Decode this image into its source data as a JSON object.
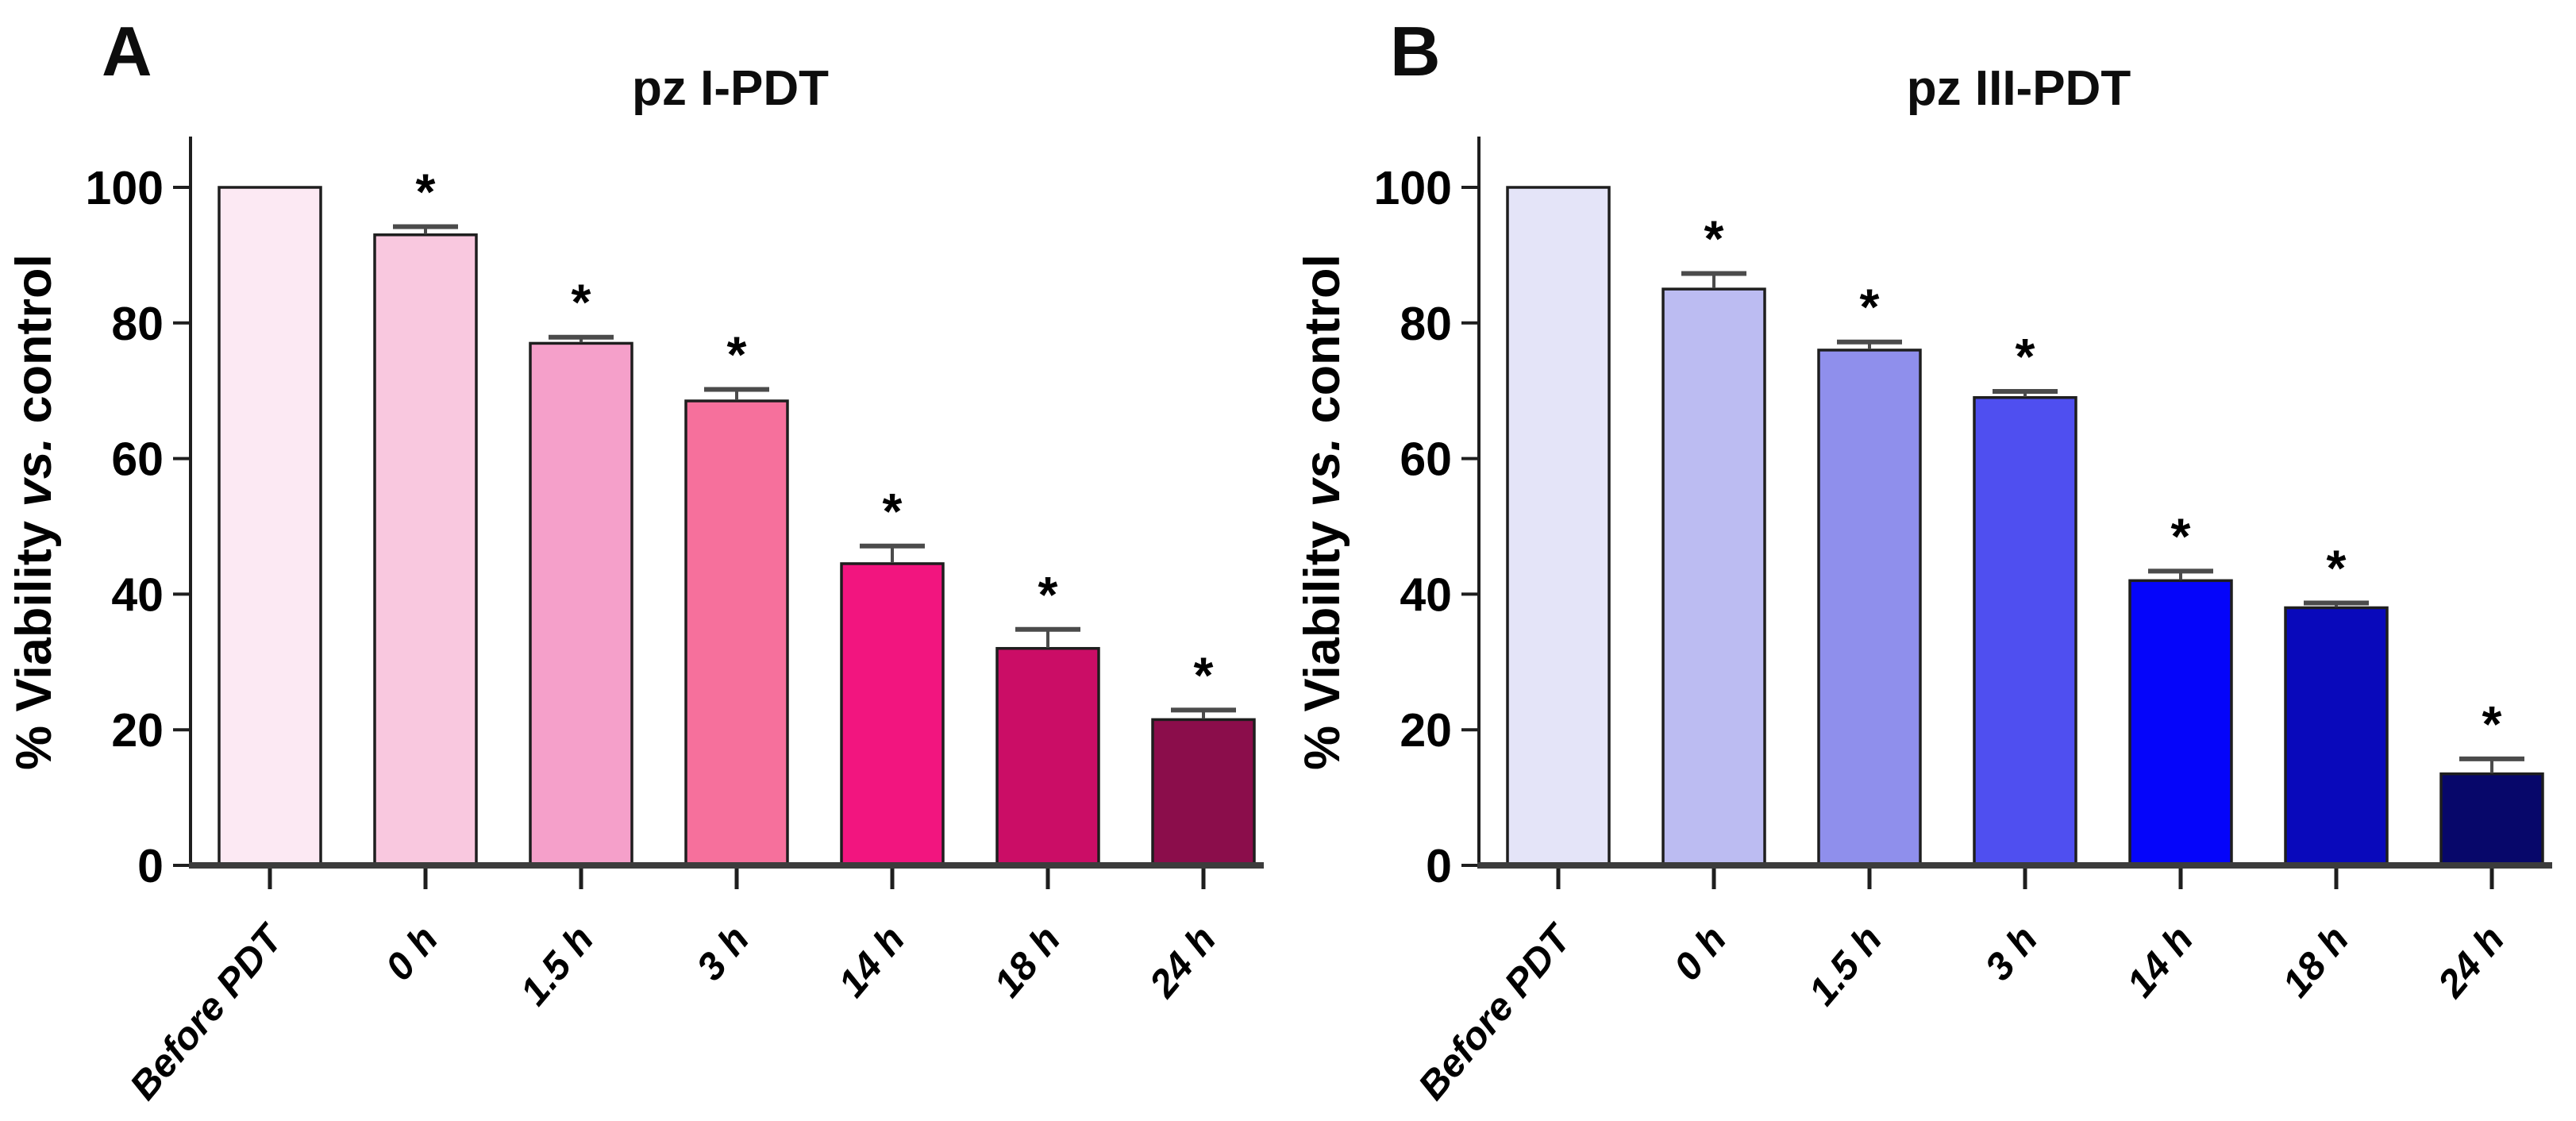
{
  "figure": {
    "background_color": "#ffffff",
    "axis_color": "#1e1e1e",
    "baseline_color": "#3c3c3c",
    "error_bar_color": "#4b4b4b",
    "bar_outline_color": "#1e1e1e",
    "text_color": "#000000",
    "significance_marker": "*",
    "y_axis_label": {
      "prefix": "% Viability ",
      "italic_word": "vs.",
      "suffix": " control"
    }
  },
  "chart_data": [
    {
      "type": "bar",
      "panel": "A",
      "title": "pz I-PDT",
      "xlabel": "",
      "ylabel": "% Viability vs. control",
      "categories": [
        "Before PDT",
        "0 h",
        "1.5 h",
        "3 h",
        "14 h",
        "18 h",
        "24 h"
      ],
      "values": [
        100,
        93,
        77,
        68.5,
        44.5,
        32,
        21.5
      ],
      "errors": [
        0,
        1.2,
        0.9,
        1.7,
        2.6,
        2.8,
        1.4
      ],
      "significant": [
        false,
        true,
        true,
        true,
        true,
        true,
        true
      ],
      "bar_colors": [
        "#fce9f3",
        "#f9c8df",
        "#f5a0ca",
        "#f6709c",
        "#f2157f",
        "#cb0d66",
        "#8b0d4b"
      ],
      "yticks": [
        0,
        20,
        40,
        60,
        80,
        100
      ],
      "ylim": [
        0,
        105
      ],
      "grid": false,
      "legend": "none"
    },
    {
      "type": "bar",
      "panel": "B",
      "title": "pz III-PDT",
      "xlabel": "",
      "ylabel": "% Viability vs. control",
      "categories": [
        "Before PDT",
        "0 h",
        "1.5 h",
        "3 h",
        "14 h",
        "18 h",
        "24 h"
      ],
      "values": [
        100,
        85,
        76,
        69,
        42,
        38,
        13.5
      ],
      "errors": [
        0,
        2.3,
        1.2,
        0.9,
        1.4,
        0.7,
        2.2
      ],
      "significant": [
        false,
        true,
        true,
        true,
        true,
        true,
        true
      ],
      "bar_colors": [
        "#e4e4f8",
        "#bcbcf2",
        "#8f8fec",
        "#4f4ff0",
        "#0505fa",
        "#0909bb",
        "#07076a"
      ],
      "yticks": [
        0,
        20,
        40,
        60,
        80,
        100
      ],
      "ylim": [
        0,
        105
      ],
      "grid": false,
      "legend": "none"
    }
  ]
}
